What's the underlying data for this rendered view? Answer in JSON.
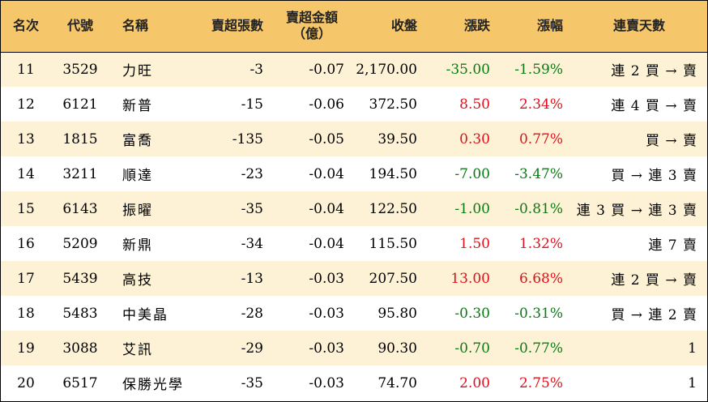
{
  "colors": {
    "header_bg": "#f6c76a",
    "row_alt_bg": "#fdf2d6",
    "up": "#e0101c",
    "down": "#0a7a14"
  },
  "columns": [
    "名次",
    "代號",
    "名稱",
    "賣超張數",
    "賣超金額\n（億）",
    "收盤",
    "漲跌",
    "漲幅",
    "連賣天數"
  ],
  "rows": [
    {
      "rank": "11",
      "code": "3529",
      "name": "力旺",
      "lots": "-3",
      "amount": "-0.07",
      "close": "2,170.00",
      "change": "-35.00",
      "pct": "-1.59%",
      "dir": "down",
      "streak": "連 2 買 → 賣"
    },
    {
      "rank": "12",
      "code": "6121",
      "name": "新普",
      "lots": "-15",
      "amount": "-0.06",
      "close": "372.50",
      "change": "8.50",
      "pct": "2.34%",
      "dir": "up",
      "streak": "連 4 買 → 賣"
    },
    {
      "rank": "13",
      "code": "1815",
      "name": "富喬",
      "lots": "-135",
      "amount": "-0.05",
      "close": "39.50",
      "change": "0.30",
      "pct": "0.77%",
      "dir": "up",
      "streak": "買 → 賣"
    },
    {
      "rank": "14",
      "code": "3211",
      "name": "順達",
      "lots": "-23",
      "amount": "-0.04",
      "close": "194.50",
      "change": "-7.00",
      "pct": "-3.47%",
      "dir": "down",
      "streak": "買 → 連 3 賣"
    },
    {
      "rank": "15",
      "code": "6143",
      "name": "振曜",
      "lots": "-35",
      "amount": "-0.04",
      "close": "122.50",
      "change": "-1.00",
      "pct": "-0.81%",
      "dir": "down",
      "streak": "連 3 買 → 連 3 賣"
    },
    {
      "rank": "16",
      "code": "5209",
      "name": "新鼎",
      "lots": "-34",
      "amount": "-0.04",
      "close": "115.50",
      "change": "1.50",
      "pct": "1.32%",
      "dir": "up",
      "streak": "連 7 賣"
    },
    {
      "rank": "17",
      "code": "5439",
      "name": "高技",
      "lots": "-13",
      "amount": "-0.03",
      "close": "207.50",
      "change": "13.00",
      "pct": "6.68%",
      "dir": "up",
      "streak": "連 2 買 → 賣"
    },
    {
      "rank": "18",
      "code": "5483",
      "name": "中美晶",
      "lots": "-28",
      "amount": "-0.03",
      "close": "95.80",
      "change": "-0.30",
      "pct": "-0.31%",
      "dir": "down",
      "streak": "買 → 連 2 賣"
    },
    {
      "rank": "19",
      "code": "3088",
      "name": "艾訊",
      "lots": "-29",
      "amount": "-0.03",
      "close": "90.30",
      "change": "-0.70",
      "pct": "-0.77%",
      "dir": "down",
      "streak": "1"
    },
    {
      "rank": "20",
      "code": "6517",
      "name": "保勝光學",
      "lots": "-35",
      "amount": "-0.03",
      "close": "74.70",
      "change": "2.00",
      "pct": "2.75%",
      "dir": "up",
      "streak": "1"
    }
  ]
}
